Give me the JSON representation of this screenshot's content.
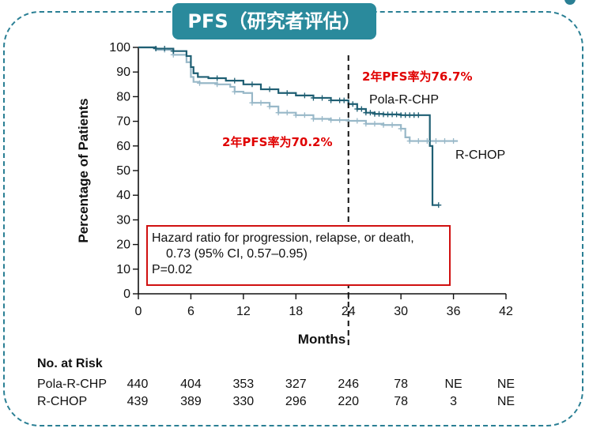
{
  "title": "PFS（研究者评估）",
  "chart_data": {
    "type": "line",
    "subtype": "kaplan-meier",
    "xlabel": "Months",
    "ylabel": "Percentage of Patients",
    "xlim": [
      0,
      42
    ],
    "ylim": [
      0,
      100
    ],
    "xticks": [
      0,
      6,
      12,
      18,
      24,
      30,
      36,
      42
    ],
    "yticks": [
      0,
      10,
      20,
      30,
      40,
      50,
      60,
      70,
      80,
      90,
      100
    ],
    "reference_x": 24,
    "annotations": [
      "2年PFS率为76.7%",
      "2年PFS率为70.2%"
    ],
    "series": [
      {
        "name": "Pola-R-CHP",
        "color": "#1f5f73",
        "x": [
          0,
          2,
          4,
          5.5,
          6,
          6.3,
          6.8,
          8,
          10,
          12,
          14,
          16,
          18,
          20,
          22,
          24,
          25,
          26,
          27,
          28,
          30,
          32,
          33,
          33.3,
          33.6,
          34.3
        ],
        "y": [
          100,
          99.5,
          98.5,
          96.5,
          92,
          89.5,
          88,
          87.5,
          86.5,
          85,
          83,
          81.5,
          80.5,
          79.5,
          78.5,
          77,
          75,
          73.5,
          73,
          72.8,
          72.5,
          72.5,
          72.5,
          60,
          36,
          36
        ],
        "censor_x": [
          2,
          3,
          4,
          9,
          11,
          13,
          15,
          17,
          19,
          20,
          21,
          22,
          23,
          23.5,
          24.5,
          25,
          25.5,
          26,
          26.5,
          27,
          27.5,
          28,
          28.5,
          29,
          29.5,
          30,
          30.5,
          31,
          31.5,
          32,
          34.3
        ]
      },
      {
        "name": "R-CHOP",
        "color": "#98b8c8",
        "x": [
          0,
          2,
          4,
          5.5,
          6,
          6.3,
          7,
          9,
          10.5,
          11,
          12,
          13,
          15,
          16,
          18,
          20,
          22,
          24,
          26,
          28,
          30,
          30.5,
          31,
          32,
          33,
          34,
          35,
          36.5
        ],
        "y": [
          100,
          99,
          97,
          94,
          88,
          86,
          85.5,
          85,
          84,
          82,
          81.5,
          77.5,
          76,
          73.5,
          72.5,
          71,
          70.5,
          70.2,
          69,
          68.5,
          67,
          63.5,
          62,
          62,
          62,
          62,
          62,
          62
        ],
        "censor_x": [
          3,
          4,
          7,
          9,
          11,
          13,
          14,
          15,
          16,
          17,
          18,
          19,
          20,
          21,
          22,
          23,
          24,
          25,
          26,
          27,
          28,
          29,
          30,
          31,
          32,
          33,
          34,
          35,
          36
        ]
      }
    ],
    "hazard_ratio": {
      "line1": "Hazard ratio for progression, relapse, or death,",
      "line2": "0.73 (95% CI, 0.57–0.95)",
      "p_value": "P=0.02"
    },
    "at_risk": {
      "title": "No. at Risk",
      "rows": [
        {
          "name": "Pola-R-CHP",
          "values": [
            "440",
            "404",
            "353",
            "327",
            "246",
            "78",
            "NE",
            "NE"
          ]
        },
        {
          "name": "R-CHOP",
          "values": [
            "439",
            "389",
            "330",
            "296",
            "220",
            "78",
            "3",
            "NE"
          ]
        }
      ]
    }
  }
}
